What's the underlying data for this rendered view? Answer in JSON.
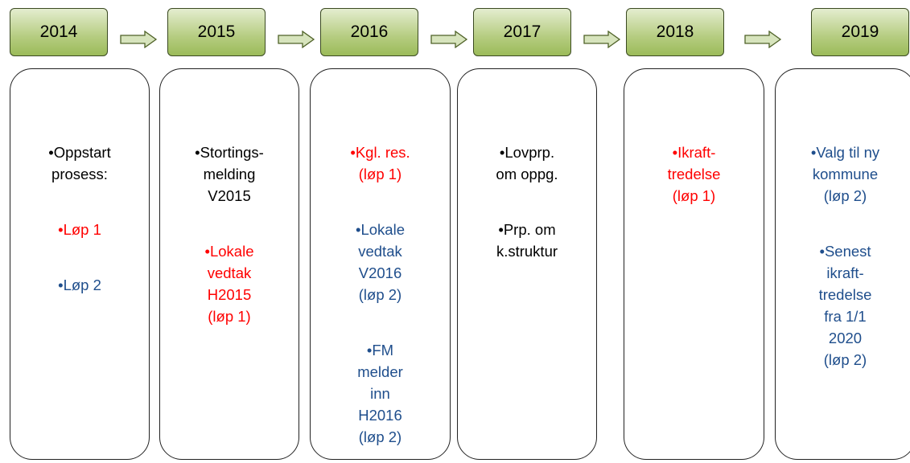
{
  "columns": [
    {
      "year": "2014",
      "items": [
        {
          "lines": [
            "Oppstart",
            "prosess:"
          ],
          "color": "#000000"
        },
        {
          "lines": [
            "Løp 1"
          ],
          "color": "#ff0000"
        },
        {
          "lines": [
            "Løp 2"
          ],
          "color": "#1f4e8c"
        }
      ]
    },
    {
      "year": "2015",
      "items": [
        {
          "lines": [
            "Stortings-",
            "melding",
            "V2015"
          ],
          "color": "#000000"
        },
        {
          "lines": [
            "Lokale",
            "vedtak",
            "H2015",
            "(løp 1)"
          ],
          "color": "#ff0000"
        }
      ]
    },
    {
      "year": "2016",
      "items": [
        {
          "lines": [
            "Kgl. res.",
            "(løp 1)"
          ],
          "color": "#ff0000"
        },
        {
          "lines": [
            "Lokale",
            "vedtak",
            "V2016",
            "(løp 2)"
          ],
          "color": "#1f4e8c"
        },
        {
          "lines": [
            "FM",
            "melder",
            "inn",
            "H2016",
            "(løp 2)"
          ],
          "color": "#1f4e8c"
        }
      ]
    },
    {
      "year": "2017",
      "items": [
        {
          "lines": [
            "Lovprp.",
            "om oppg."
          ],
          "color": "#000000"
        },
        {
          "lines": [
            "Prp. om",
            "k.struktur"
          ],
          "color": "#000000"
        }
      ]
    },
    {
      "year": "2018",
      "items": [
        {
          "lines": [
            "Ikraft-",
            "tredelse",
            "(løp 1)"
          ],
          "color": "#ff0000"
        }
      ]
    },
    {
      "year": "2019",
      "items": [
        {
          "lines": [
            "Valg til ny",
            "kommune",
            "(løp 2)"
          ],
          "color": "#1f4e8c"
        },
        {
          "lines": [
            "Senest",
            "ikraft-",
            "tredelse",
            "fra 1/1",
            "2020",
            "(løp 2)"
          ],
          "color": "#1f4e8c"
        }
      ]
    }
  ]
}
